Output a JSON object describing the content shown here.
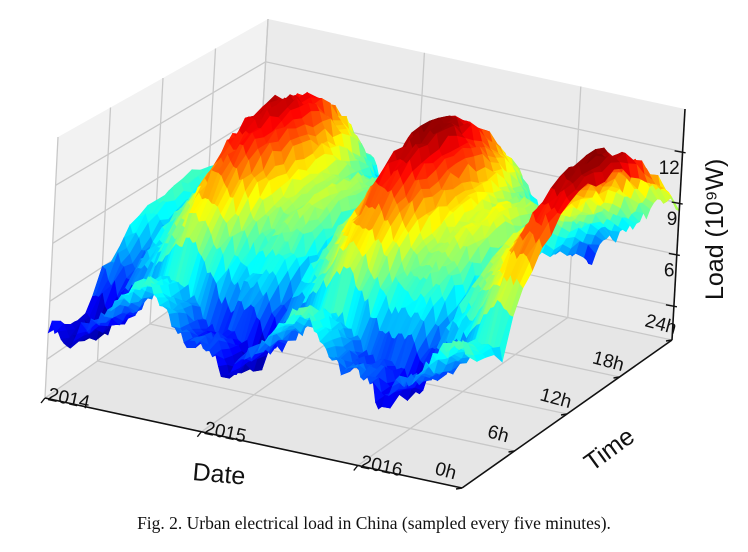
{
  "caption": "Fig. 2.  Urban electrical load in China (sampled every five minutes).",
  "chart_data": {
    "type": "surface3d",
    "title": "",
    "xlabel": "Date",
    "ylabel": "Time",
    "zlabel": "Load (10⁹W)",
    "x_ticks": [
      "2014",
      "2015",
      "2016"
    ],
    "y_ticks": [
      "0h",
      "6h",
      "12h",
      "18h",
      "24h"
    ],
    "z_ticks": [
      "6",
      "9",
      "12"
    ],
    "z_unlabeled_tick": 3,
    "x_range": [
      "2014-01",
      "2016-09"
    ],
    "y_range_hours": [
      0,
      24
    ],
    "zlim": [
      1,
      14.5
    ],
    "grid": true,
    "colormap": "jet",
    "months": [
      "2014-01",
      "2014-02",
      "2014-03",
      "2014-04",
      "2014-05",
      "2014-06",
      "2014-07",
      "2014-08",
      "2014-09",
      "2014-10",
      "2014-11",
      "2014-12",
      "2015-01",
      "2015-02",
      "2015-03",
      "2015-04",
      "2015-05",
      "2015-06",
      "2015-07",
      "2015-08",
      "2015-09",
      "2015-10",
      "2015-11",
      "2015-12",
      "2016-01",
      "2016-02",
      "2016-03",
      "2016-04",
      "2016-05",
      "2016-06",
      "2016-07",
      "2016-08",
      "2016-09"
    ],
    "monthly_peak_load": [
      8.0,
      6.5,
      8.5,
      9.0,
      10.5,
      12.0,
      13.5,
      13.5,
      12.0,
      10.0,
      9.0,
      9.5,
      9.0,
      6.5,
      9.0,
      9.5,
      11.0,
      12.5,
      14.0,
      14.0,
      12.5,
      10.5,
      9.5,
      10.0,
      9.5,
      7.0,
      9.5,
      10.0,
      11.0,
      12.5,
      14.0,
      14.0,
      12.5
    ],
    "monthly_min_load": [
      4.0,
      3.2,
      4.2,
      4.5,
      5.2,
      6.0,
      6.8,
      6.8,
      6.0,
      5.0,
      4.5,
      4.8,
      4.5,
      3.2,
      4.5,
      4.8,
      5.5,
      6.3,
      7.0,
      7.0,
      6.3,
      5.3,
      4.8,
      5.0,
      4.8,
      3.5,
      4.8,
      5.0,
      5.5,
      6.3,
      7.0,
      7.0,
      6.3
    ]
  }
}
